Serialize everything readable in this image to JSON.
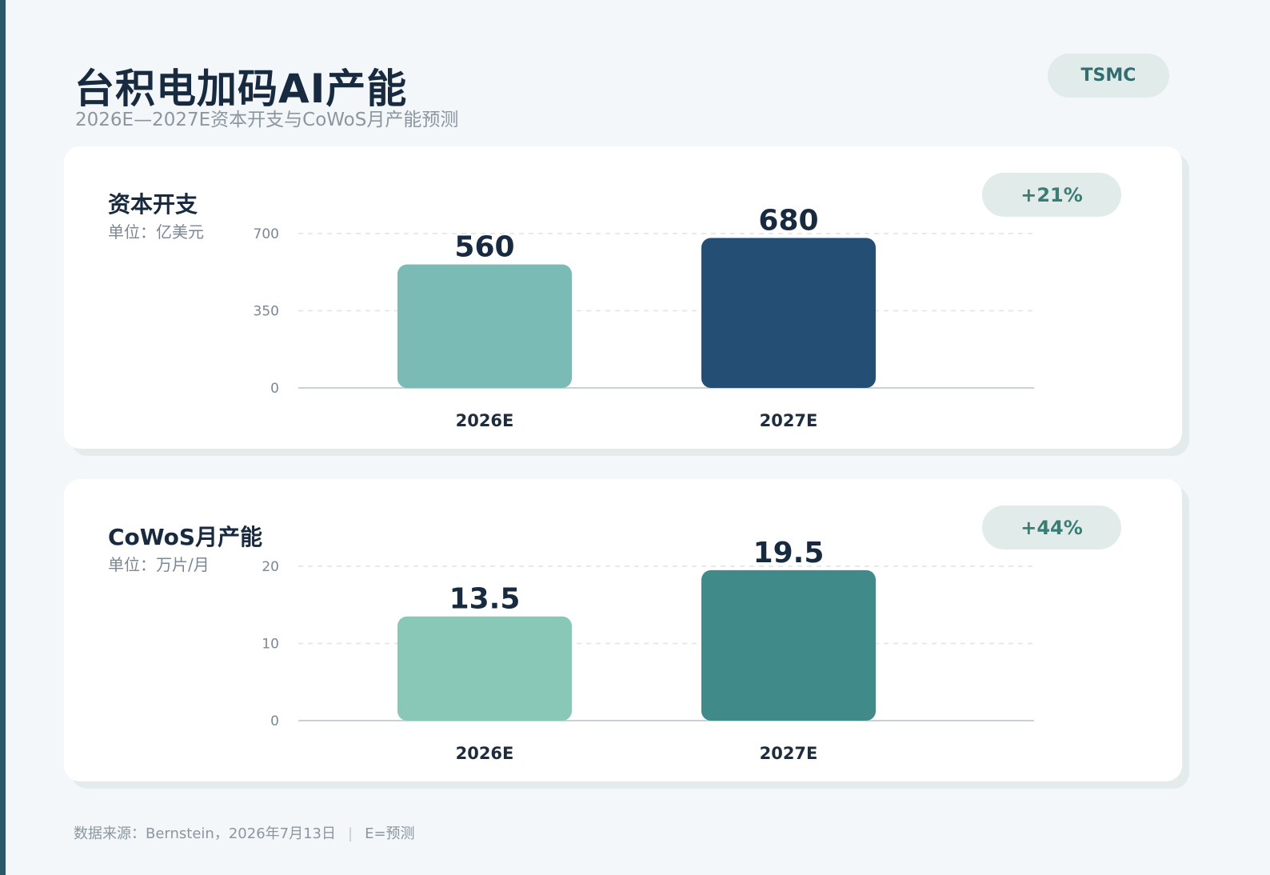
{
  "header": {
    "title": "台积电加码AI产能",
    "subtitle": "2026E—2027E资本开支与CoWoS月产能预测",
    "tag": "TSMC"
  },
  "footer": {
    "source": "数据来源：Bernstein，2026年7月13日",
    "note": "E=预测"
  },
  "colors": {
    "capex_2026": "#7bbbb5",
    "capex_2027": "#244e74",
    "cowos_2026": "#89c7b6",
    "cowos_2027": "#408a8a"
  },
  "chart_data": [
    {
      "type": "bar",
      "title": "资本开支",
      "unit": "单位：亿美元",
      "growth": "+21%",
      "categories": [
        "2026E",
        "2027E"
      ],
      "values": [
        560,
        680
      ],
      "value_labels": [
        "560",
        "680"
      ],
      "yticks": [
        0,
        350,
        700
      ],
      "ylim": [
        0,
        700
      ],
      "grid": true,
      "colors": [
        "#7bbbb5",
        "#244e74"
      ]
    },
    {
      "type": "bar",
      "title": "CoWoS月产能",
      "unit": "单位：万片/月",
      "growth": "+44%",
      "categories": [
        "2026E",
        "2027E"
      ],
      "values": [
        13.5,
        19.5
      ],
      "value_labels": [
        "13.5",
        "19.5"
      ],
      "yticks": [
        0,
        10,
        20
      ],
      "ylim": [
        0,
        20
      ],
      "grid": true,
      "colors": [
        "#89c7b6",
        "#408a8a"
      ]
    }
  ]
}
